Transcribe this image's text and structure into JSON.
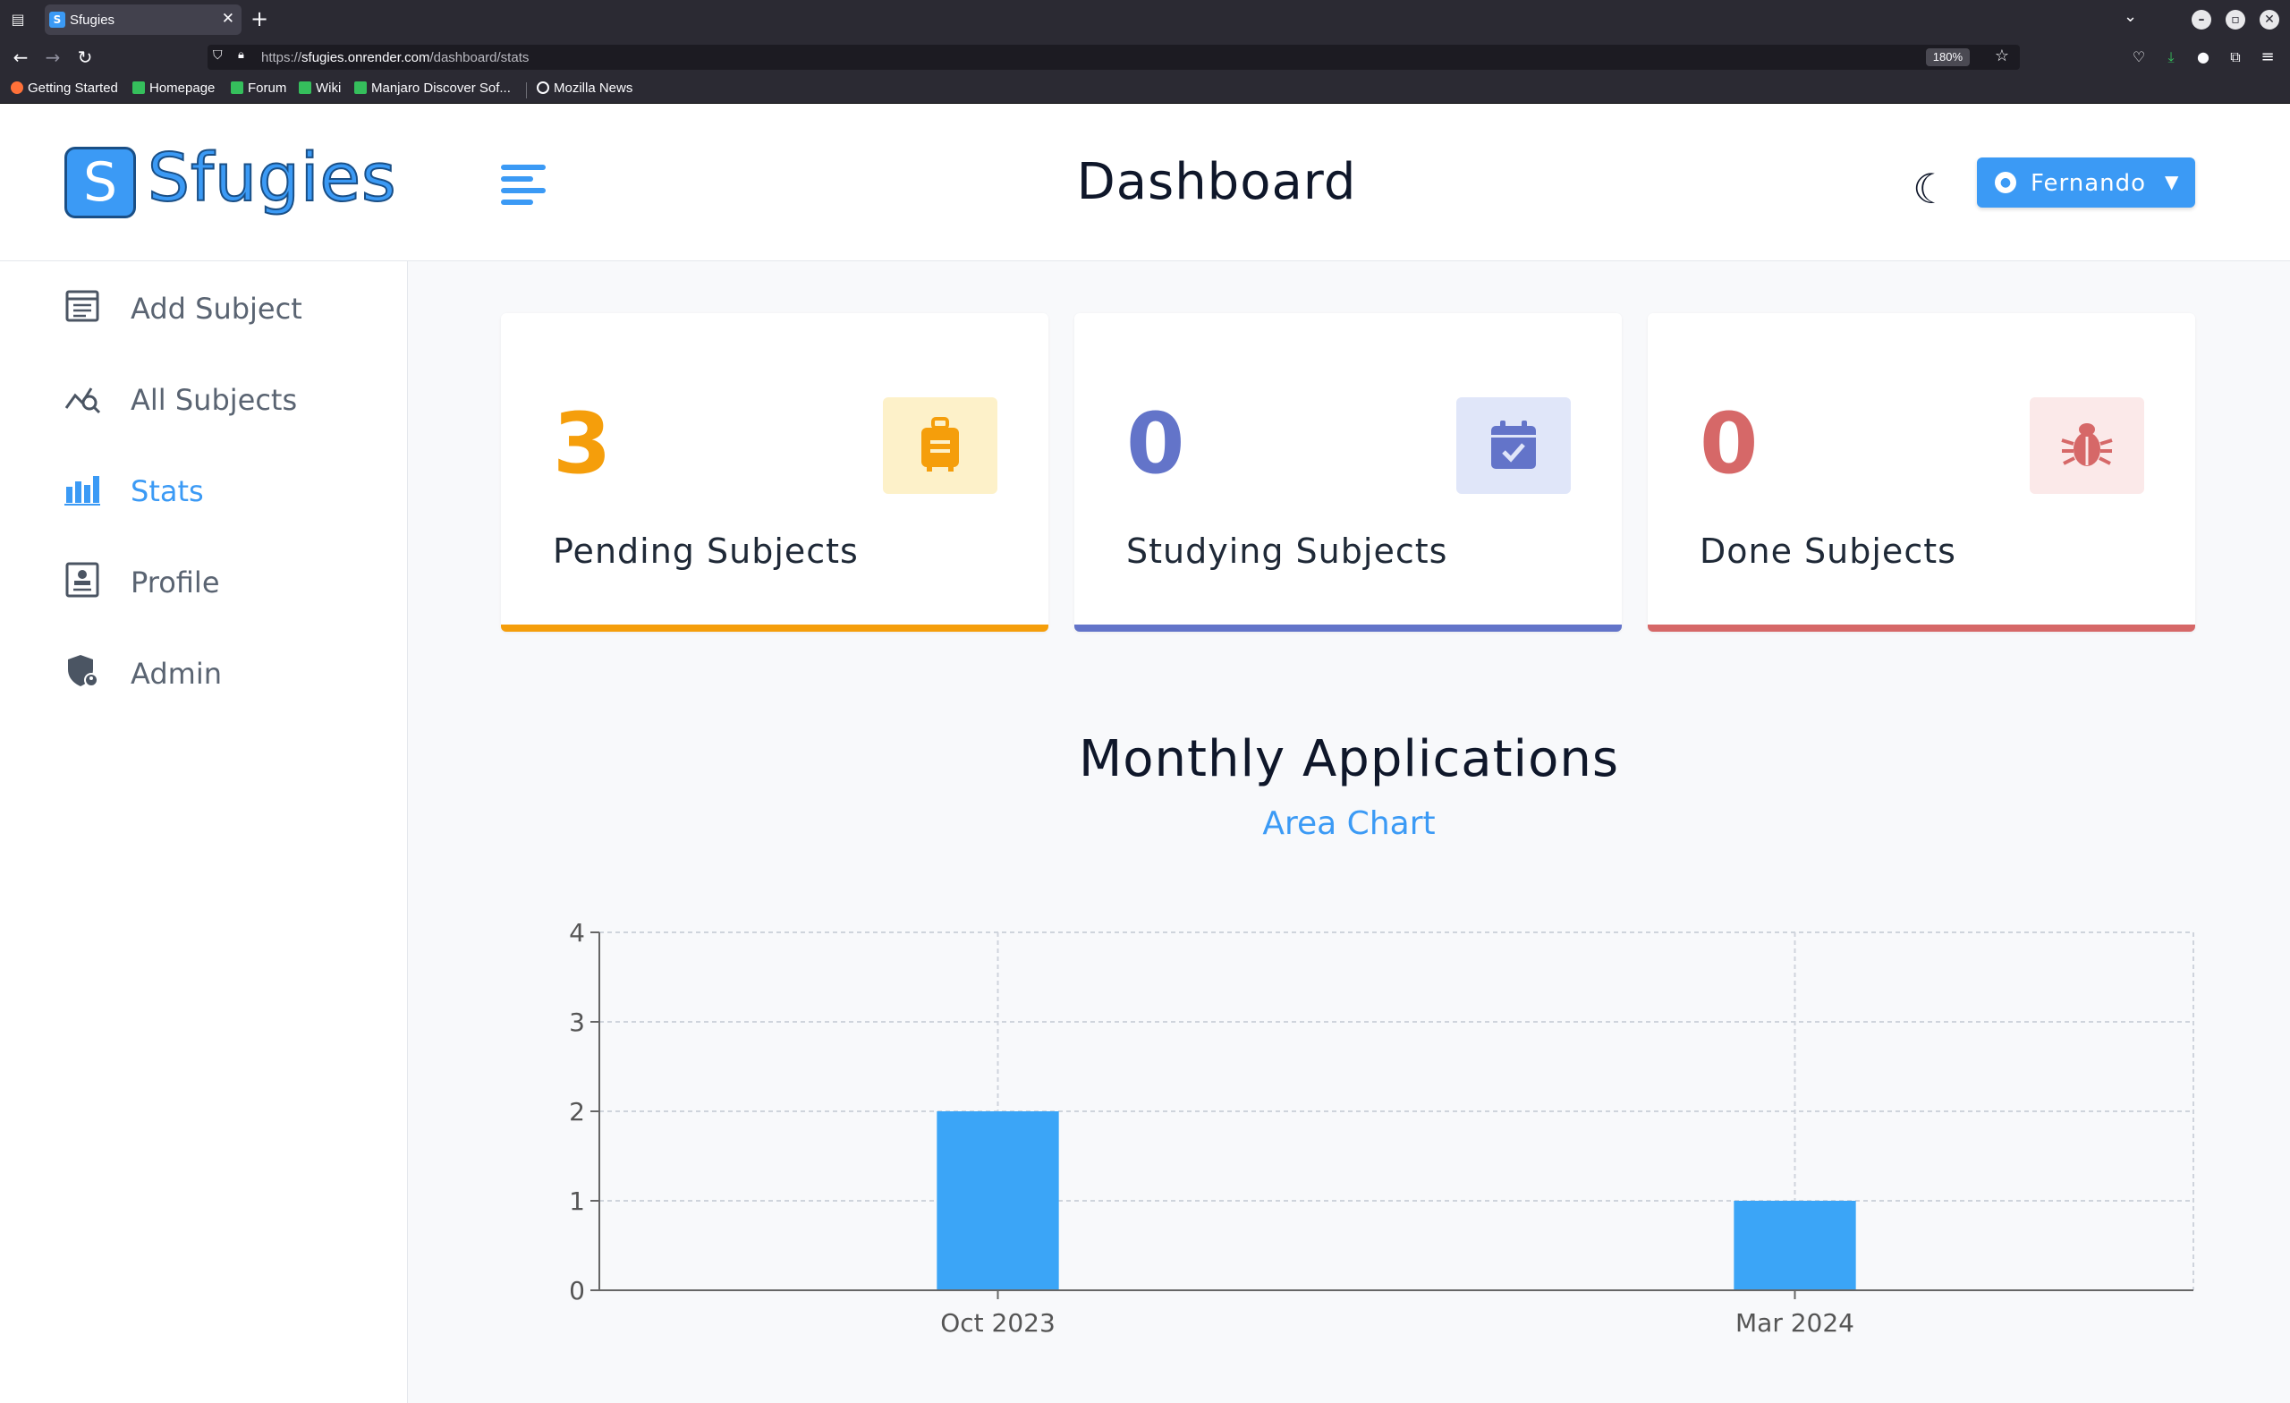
{
  "browser": {
    "tab_title": "Sfugies",
    "tab_favicon": "S",
    "url_scheme": "https://",
    "url_host": "sfugies.onrender.com",
    "url_path": "/dashboard/stats",
    "zoom": "180%",
    "bookmarks": [
      "Getting Started",
      "Homepage",
      "Forum",
      "Wiki",
      "Manjaro Discover Sof...",
      "Mozilla News"
    ]
  },
  "header": {
    "logo_letter": "S",
    "logo_text": "Sfugies",
    "title": "Dashboard",
    "user_name": "Fernando"
  },
  "sidebar": {
    "items": [
      {
        "label": "Add Subject",
        "icon": "form-icon"
      },
      {
        "label": "All Subjects",
        "icon": "chart-search-icon"
      },
      {
        "label": "Stats",
        "icon": "bar-chart-icon",
        "active": true
      },
      {
        "label": "Profile",
        "icon": "profile-card-icon"
      },
      {
        "label": "Admin",
        "icon": "admin-shield-icon"
      }
    ]
  },
  "stats": [
    {
      "count": "3",
      "label": "Pending Subjects",
      "icon": "suitcase-icon",
      "color": "#f59e0b",
      "icon_bg": "#fdf1c9"
    },
    {
      "count": "0",
      "label": "Studying Subjects",
      "icon": "calendar-check-icon",
      "color": "#6374c9",
      "icon_bg": "#e0e6f9"
    },
    {
      "count": "0",
      "label": "Done Subjects",
      "icon": "bug-icon",
      "color": "#d66868",
      "icon_bg": "#fbe9e9"
    }
  ],
  "chart": {
    "title": "Monthly Applications",
    "subtitle": "Area Chart"
  },
  "chart_data": {
    "type": "bar",
    "categories": [
      "Oct 2023",
      "Mar 2024"
    ],
    "values": [
      2,
      1
    ],
    "ylim": [
      0,
      4
    ],
    "yticks": [
      0,
      1,
      2,
      3,
      4
    ],
    "grid": true,
    "bar_color": "#3ba5f7"
  }
}
